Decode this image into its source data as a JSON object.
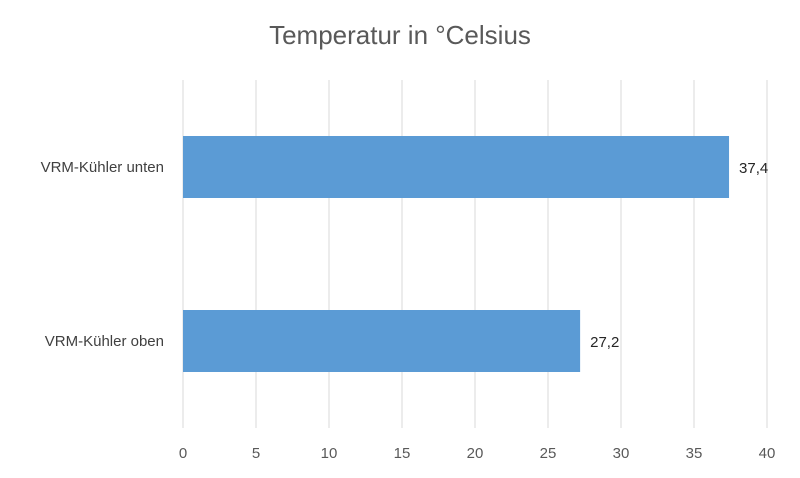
{
  "chart_data": {
    "type": "bar",
    "orientation": "horizontal",
    "title": "Temperatur in °Celsius",
    "categories": [
      "VRM-Kühler unten",
      "VRM-Kühler oben"
    ],
    "values": [
      37.4,
      27.2
    ],
    "data_labels": [
      "37,4",
      "27,2"
    ],
    "xlim": [
      0,
      40
    ],
    "x_ticks": [
      "0",
      "5",
      "10",
      "15",
      "20",
      "25",
      "30",
      "35",
      "40"
    ],
    "xlabel": "",
    "ylabel": "",
    "grid": true,
    "legend": "none",
    "bar_color": "#5b9bd5"
  }
}
